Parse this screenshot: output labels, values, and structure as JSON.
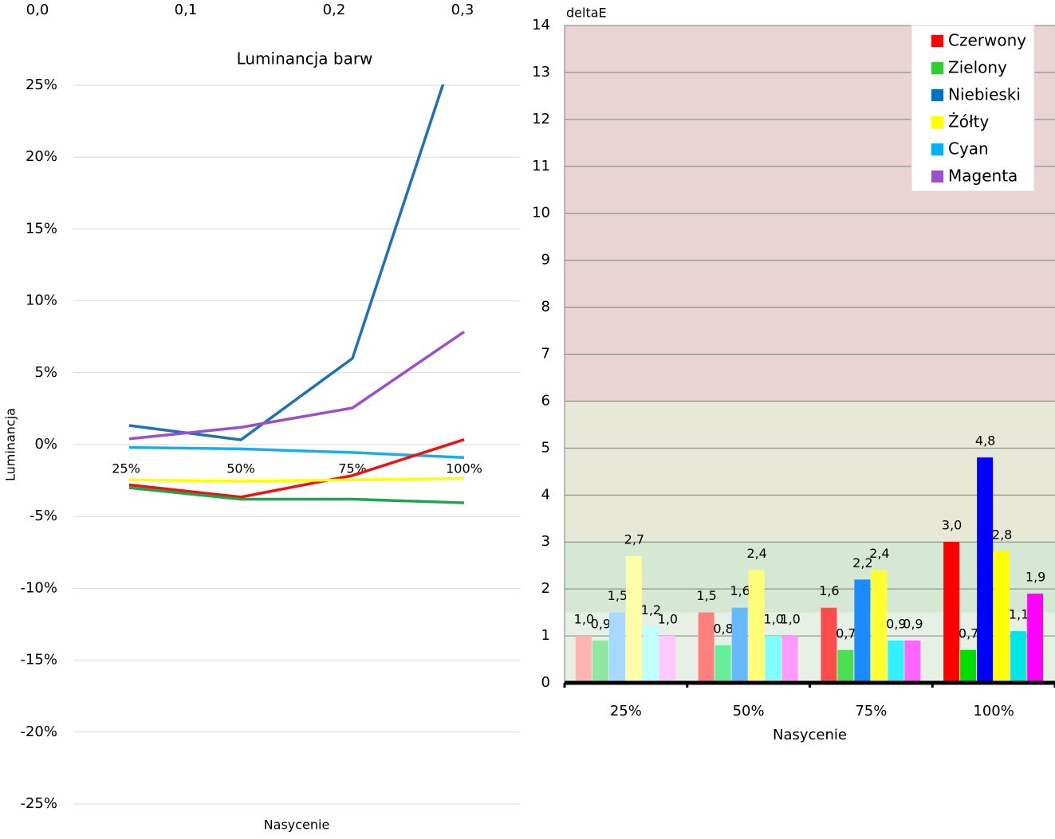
{
  "chart_data": [
    {
      "type": "line",
      "title": "Luminancja barw",
      "y_label": "Luminancja",
      "x_label": "Nasycenie",
      "categories": [
        "25%",
        "50%",
        "75%",
        "100%"
      ],
      "ylim": [
        -25,
        25
      ],
      "yticks": [
        {
          "value": -25,
          "label": "-25%"
        },
        {
          "value": -20,
          "label": "-20%"
        },
        {
          "value": -15,
          "label": "-15%"
        },
        {
          "value": -10,
          "label": "-10%"
        },
        {
          "value": -5,
          "label": "-5%"
        },
        {
          "value": 0,
          "label": "0%"
        },
        {
          "value": 5,
          "label": "5%"
        },
        {
          "value": 10,
          "label": "10%"
        },
        {
          "value": 15,
          "label": "15%"
        },
        {
          "value": 20,
          "label": "20%"
        },
        {
          "value": 25,
          "label": "25%"
        }
      ],
      "x2lim": [
        0,
        0.3
      ],
      "x2ticks": [
        {
          "value": 0,
          "label": "0,0"
        },
        {
          "value": 0.1,
          "label": "0,1"
        },
        {
          "value": 0.2,
          "label": "0,2"
        },
        {
          "value": 0.3,
          "label": "0,3"
        }
      ],
      "grid": true,
      "series": [
        {
          "color": "#2070b8",
          "values": [
            1.33,
            0.33,
            6.0,
            29.5
          ]
        },
        {
          "color": "#9b4fc9",
          "values": [
            0.4,
            1.2,
            2.55,
            7.85
          ]
        },
        {
          "color": "#1aaee8",
          "values": [
            -0.2,
            -0.3,
            -0.55,
            -0.9
          ]
        },
        {
          "color": "#f01010",
          "values": [
            -2.8,
            -3.65,
            -2.15,
            0.35
          ]
        },
        {
          "color": "#ffff00",
          "values": [
            -2.45,
            -2.55,
            -2.45,
            -2.35
          ]
        },
        {
          "color": "#1aa64a",
          "values": [
            -3.0,
            -3.8,
            -3.8,
            -4.05
          ]
        }
      ]
    },
    {
      "type": "bar",
      "y_label": "deltaE",
      "x_label": "Nasycenie",
      "categories": [
        "25%",
        "50%",
        "75%",
        "100%"
      ],
      "ylim": [
        0,
        14
      ],
      "yticks": [
        0,
        1,
        2,
        3,
        4,
        5,
        6,
        7,
        8,
        9,
        10,
        11,
        12,
        13,
        14
      ],
      "grid": true,
      "legend": "upper right",
      "bands": [
        {
          "from": 0,
          "to": 1.5,
          "color": "#e6f0e4"
        },
        {
          "from": 1.5,
          "to": 3,
          "color": "#d4e8d4"
        },
        {
          "from": 3,
          "to": 6,
          "color": "#e8e8d6"
        },
        {
          "from": 6,
          "to": 14,
          "color": "#ead3d4"
        }
      ],
      "series": [
        {
          "name": "Czerwony",
          "color": "#ff0000",
          "colors": [
            "#ffb3b3",
            "#ff7f7f",
            "#ff4d4d",
            "#ff0000"
          ],
          "values": [
            1.0,
            1.5,
            1.6,
            3.0
          ],
          "value_labels": [
            "1,0",
            "1,5",
            "1,6",
            "3,0"
          ]
        },
        {
          "name": "Zielony",
          "color": "#33cc33",
          "colors": [
            "#8fe8a0",
            "#66ee99",
            "#4ddd55",
            "#00dd00"
          ],
          "values": [
            0.9,
            0.8,
            0.7,
            0.7
          ],
          "value_labels": [
            "0,9",
            "0,8",
            "0,7",
            "0,7"
          ]
        },
        {
          "name": "Niebieski",
          "color": "#0070c0",
          "colors": [
            "#a8d8ff",
            "#66b8ff",
            "#1a8cff",
            "#0000ff"
          ],
          "values": [
            1.5,
            1.6,
            2.2,
            4.8
          ],
          "value_labels": [
            "1,5",
            "1,6",
            "2,2",
            "4,8"
          ]
        },
        {
          "name": "Żółty",
          "color": "#ffff00",
          "colors": [
            "#ffffa8",
            "#ffff77",
            "#ffff33",
            "#ffff00"
          ],
          "values": [
            2.7,
            2.4,
            2.4,
            2.8
          ],
          "value_labels": [
            "2,7",
            "2,4",
            "2,4",
            "2,8"
          ]
        },
        {
          "name": "Cyan",
          "color": "#00b0f0",
          "colors": [
            "#c0ffff",
            "#80ffff",
            "#33f0ff",
            "#00e5e5"
          ],
          "values": [
            1.2,
            1.0,
            0.9,
            1.1
          ],
          "value_labels": [
            "1,2",
            "1,0",
            "0,9",
            "1,1"
          ]
        },
        {
          "name": "Magenta",
          "color": "#9b4fc9",
          "colors": [
            "#ffc8ff",
            "#ff99ff",
            "#ff66ff",
            "#ff00ff"
          ],
          "values": [
            1.0,
            1.0,
            0.9,
            1.9
          ],
          "value_labels": [
            "1,0",
            "1,0",
            "0,9",
            "1,9"
          ]
        }
      ]
    }
  ]
}
